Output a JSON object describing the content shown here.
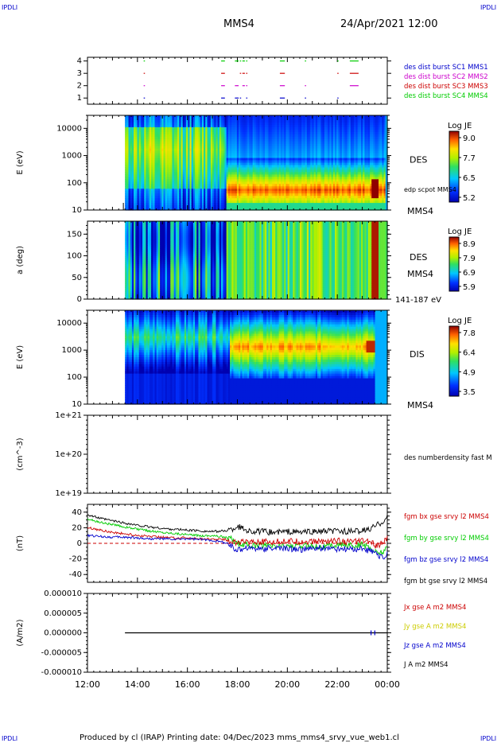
{
  "corner_labels": {
    "tl": "IPDLI",
    "tr": "IPDLI",
    "bl": "IPDLI",
    "br": "IPDLI"
  },
  "header": {
    "spacecraft": "MMS4",
    "datetime": "24/Apr/2021 12:00"
  },
  "footer": "Produced by cl (IRAP)   Printing date: 04/Dec/2023   mms_mms4_srvy_vue_web1.cl",
  "colors": {
    "blue": "#0000cc",
    "magenta": "#cc00cc",
    "red": "#cc0000",
    "green": "#00cc00",
    "black": "#000000"
  },
  "chart_data": [
    {
      "type": "scatter",
      "panel": "burst",
      "ylim": [
        0.5,
        4.3
      ],
      "yticks": [
        "1",
        "2",
        "3",
        "4"
      ],
      "legend": [
        {
          "label": "des dist burst SC1 MMS1",
          "color": "#0000cc",
          "y": 1
        },
        {
          "label": "des dist burst SC2 MMS2",
          "color": "#cc00cc",
          "y": 2
        },
        {
          "label": "des dist burst SC3 MMS3",
          "color": "#cc0000",
          "y": 3
        },
        {
          "label": "des dist burst SC4 MMS4",
          "color": "#00cc00",
          "y": 4
        }
      ],
      "segments_hours": [
        [
          14.25,
          14.3
        ],
        [
          17.35,
          17.5
        ],
        [
          17.9,
          18.05
        ],
        [
          18.1,
          18.15
        ],
        [
          18.2,
          18.3
        ],
        [
          18.35,
          18.4
        ],
        [
          19.7,
          19.9
        ],
        [
          20.7,
          20.75
        ],
        [
          22.0,
          22.05
        ],
        [
          22.5,
          22.85
        ]
      ]
    },
    {
      "type": "heatmap",
      "panel": "des_energy",
      "ylabel": "E (eV)",
      "yscale": "log",
      "ylim": [
        10,
        30000
      ],
      "yticks": [
        "10",
        "100",
        "1000",
        "10000"
      ],
      "label": "DES",
      "overlay_label": "edp scpot MMS4",
      "sc_label": "MMS4",
      "colorbar": {
        "title": "Log JE",
        "ticks": [
          "9.0",
          "7.7",
          "6.5",
          "5.2"
        ],
        "min": 5.2,
        "max": 9.0
      },
      "data_start_hour": 13.5
    },
    {
      "type": "heatmap",
      "panel": "des_pitch",
      "ylabel": "a (deg)",
      "ylim": [
        0,
        180
      ],
      "yticks": [
        "0",
        "50",
        "100",
        "150"
      ],
      "label": "DES",
      "sc_label": "MMS4",
      "range_label": "141-187 eV",
      "colorbar": {
        "title": "Log JE",
        "ticks": [
          "8.9",
          "7.9",
          "6.9",
          "5.9"
        ],
        "min": 5.9,
        "max": 8.9
      },
      "data_start_hour": 13.5
    },
    {
      "type": "heatmap",
      "panel": "dis_energy",
      "ylabel": "E (eV)",
      "yscale": "log",
      "ylim": [
        10,
        30000
      ],
      "yticks": [
        "10",
        "100",
        "1000",
        "10000"
      ],
      "label": "DIS",
      "sc_label": "MMS4",
      "colorbar": {
        "title": "Log JE",
        "ticks": [
          "7.8",
          "6.4",
          "4.9",
          "3.5"
        ],
        "min": 3.5,
        "max": 7.8
      },
      "data_start_hour": 13.5
    },
    {
      "type": "line",
      "panel": "density",
      "ylabel": "(cm^-3)",
      "yscale": "log",
      "ylim": [
        1e+19,
        1e+21
      ],
      "yticks": [
        "1e+19",
        "1e+20",
        "1e+21"
      ],
      "legend": [
        {
          "label": "des numberdensity fast M",
          "color": "#000000"
        }
      ],
      "series": []
    },
    {
      "type": "line",
      "panel": "fgm",
      "ylabel": "(nT)",
      "ylim": [
        -50,
        50
      ],
      "yticks": [
        "-40",
        "-20",
        "0",
        "20",
        "40"
      ],
      "legend": [
        {
          "label": "fgm bx gse srvy l2 MMS4",
          "color": "#cc0000"
        },
        {
          "label": "fgm by gse srvy l2 MMS4",
          "color": "#00cc00"
        },
        {
          "label": "fgm bz gse srvy l2 MMS4",
          "color": "#0000cc"
        },
        {
          "label": "fgm bt gse srvy l2 MMS4",
          "color": "#000000"
        }
      ],
      "x_hours": [
        12.0,
        12.5,
        13.0,
        13.5,
        14.0,
        14.5,
        15.0,
        15.5,
        16.0,
        16.5,
        17.0,
        17.5,
        17.8,
        18.0,
        18.3,
        18.6,
        19.0,
        19.5,
        20.0,
        20.5,
        21.0,
        21.5,
        22.0,
        22.5,
        23.0,
        23.3,
        23.6,
        23.9,
        24.0
      ],
      "series": [
        {
          "name": "bt",
          "color": "#000000",
          "values": [
            37,
            32,
            29,
            26,
            23,
            21,
            19,
            18,
            17,
            16,
            15,
            16,
            18,
            22,
            18,
            15,
            15,
            14,
            15,
            14,
            15,
            15,
            16,
            15,
            16,
            18,
            24,
            30,
            34
          ]
        },
        {
          "name": "by",
          "color": "#00cc00",
          "values": [
            31,
            27,
            24,
            21,
            18,
            16,
            14,
            13,
            11,
            10,
            10,
            8,
            5,
            0,
            -2,
            -3,
            -3,
            -4,
            -3,
            -4,
            -3,
            -4,
            -2,
            -3,
            -2,
            -6,
            -12,
            -10,
            -4
          ]
        },
        {
          "name": "bx",
          "color": "#cc0000",
          "values": [
            20,
            17,
            14,
            12,
            10,
            9,
            8,
            7,
            7,
            6,
            5,
            5,
            2,
            1,
            2,
            3,
            2,
            2,
            3,
            2,
            2,
            3,
            3,
            2,
            3,
            2,
            -4,
            3,
            6
          ]
        },
        {
          "name": "bz",
          "color": "#0000cc",
          "values": [
            10,
            9,
            8,
            8,
            7,
            6,
            6,
            5,
            6,
            5,
            4,
            1,
            -4,
            -10,
            -5,
            -6,
            -7,
            -6,
            -7,
            -8,
            -7,
            -6,
            -7,
            -8,
            -7,
            -10,
            -14,
            -20,
            -8
          ]
        }
      ]
    },
    {
      "type": "line",
      "panel": "current",
      "ylabel": "(A/m2)",
      "ylim": [
        -1e-05,
        1e-05
      ],
      "yticks": [
        "-0.000010",
        "-0.000005",
        "0.000000",
        "0.000005",
        "0.000010"
      ],
      "legend": [
        {
          "label": "Jx gse A m2 MMS4",
          "color": "#cc0000"
        },
        {
          "label": "Jy gse A m2 MMS4",
          "color": "#cccc00"
        },
        {
          "label": "Jz gse A m2 MMS4",
          "color": "#0000cc"
        },
        {
          "label": "J A m2 MMS4",
          "color": "#000000"
        }
      ],
      "x_hours": [
        13.5,
        24.0
      ],
      "series": [
        {
          "name": "J",
          "color": "#000000",
          "values": [
            0.0,
            0.0
          ]
        }
      ]
    },
    {
      "type": "time_axis",
      "xlim_hours": [
        12,
        24
      ],
      "xticks": [
        "12:00",
        "14:00",
        "16:00",
        "18:00",
        "20:00",
        "22:00",
        "00:00"
      ]
    }
  ]
}
